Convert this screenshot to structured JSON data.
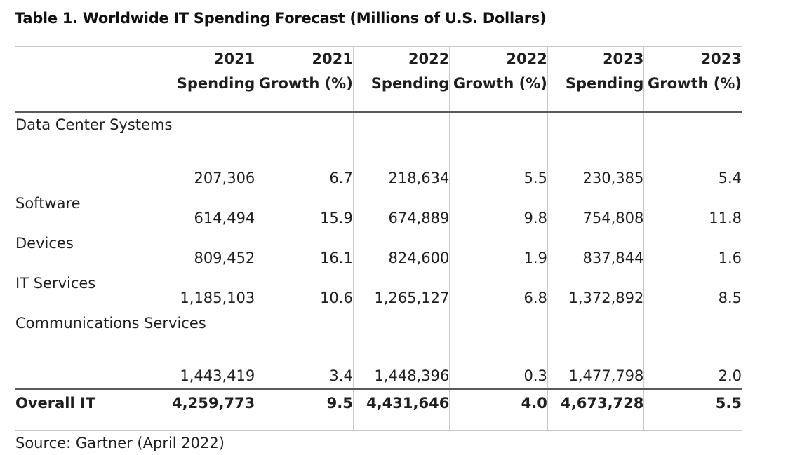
{
  "title": "Table 1. Worldwide IT Spending Forecast (Millions of U.S. Dollars)",
  "columns": [
    {
      "year": "2021",
      "label": "Spending"
    },
    {
      "year": "2021",
      "label": "Growth (%)"
    },
    {
      "year": "2022",
      "label": "Spending"
    },
    {
      "year": "2022",
      "label": "Growth (%)"
    },
    {
      "year": "2023",
      "label": "Spending"
    },
    {
      "year": "2023",
      "label": "Growth (%)"
    }
  ],
  "rows": [
    {
      "label": "Data Center Systems",
      "values": [
        "207,306",
        "6.7",
        "218,634",
        "5.5",
        "230,385",
        "5.4"
      ]
    },
    {
      "label": "Software",
      "values": [
        "614,494",
        "15.9",
        "674,889",
        "9.8",
        "754,808",
        "11.8"
      ]
    },
    {
      "label": "Devices",
      "values": [
        "809,452",
        "16.1",
        "824,600",
        "1.9",
        "837,844",
        "1.6"
      ]
    },
    {
      "label": "IT Services",
      "values": [
        "1,185,103",
        "10.6",
        "1,265,127",
        "6.8",
        "1,372,892",
        "8.5"
      ]
    },
    {
      "label": "Communications Services",
      "values": [
        "1,443,419",
        "3.4",
        "1,448,396",
        "0.3",
        "1,477,798",
        "2.0"
      ]
    }
  ],
  "total": {
    "label": "Overall IT",
    "values": [
      "4,259,773",
      "9.5",
      "4,431,646",
      "4.0",
      "4,673,728",
      "5.5"
    ]
  },
  "source": "Source: Gartner (April 2022)"
}
